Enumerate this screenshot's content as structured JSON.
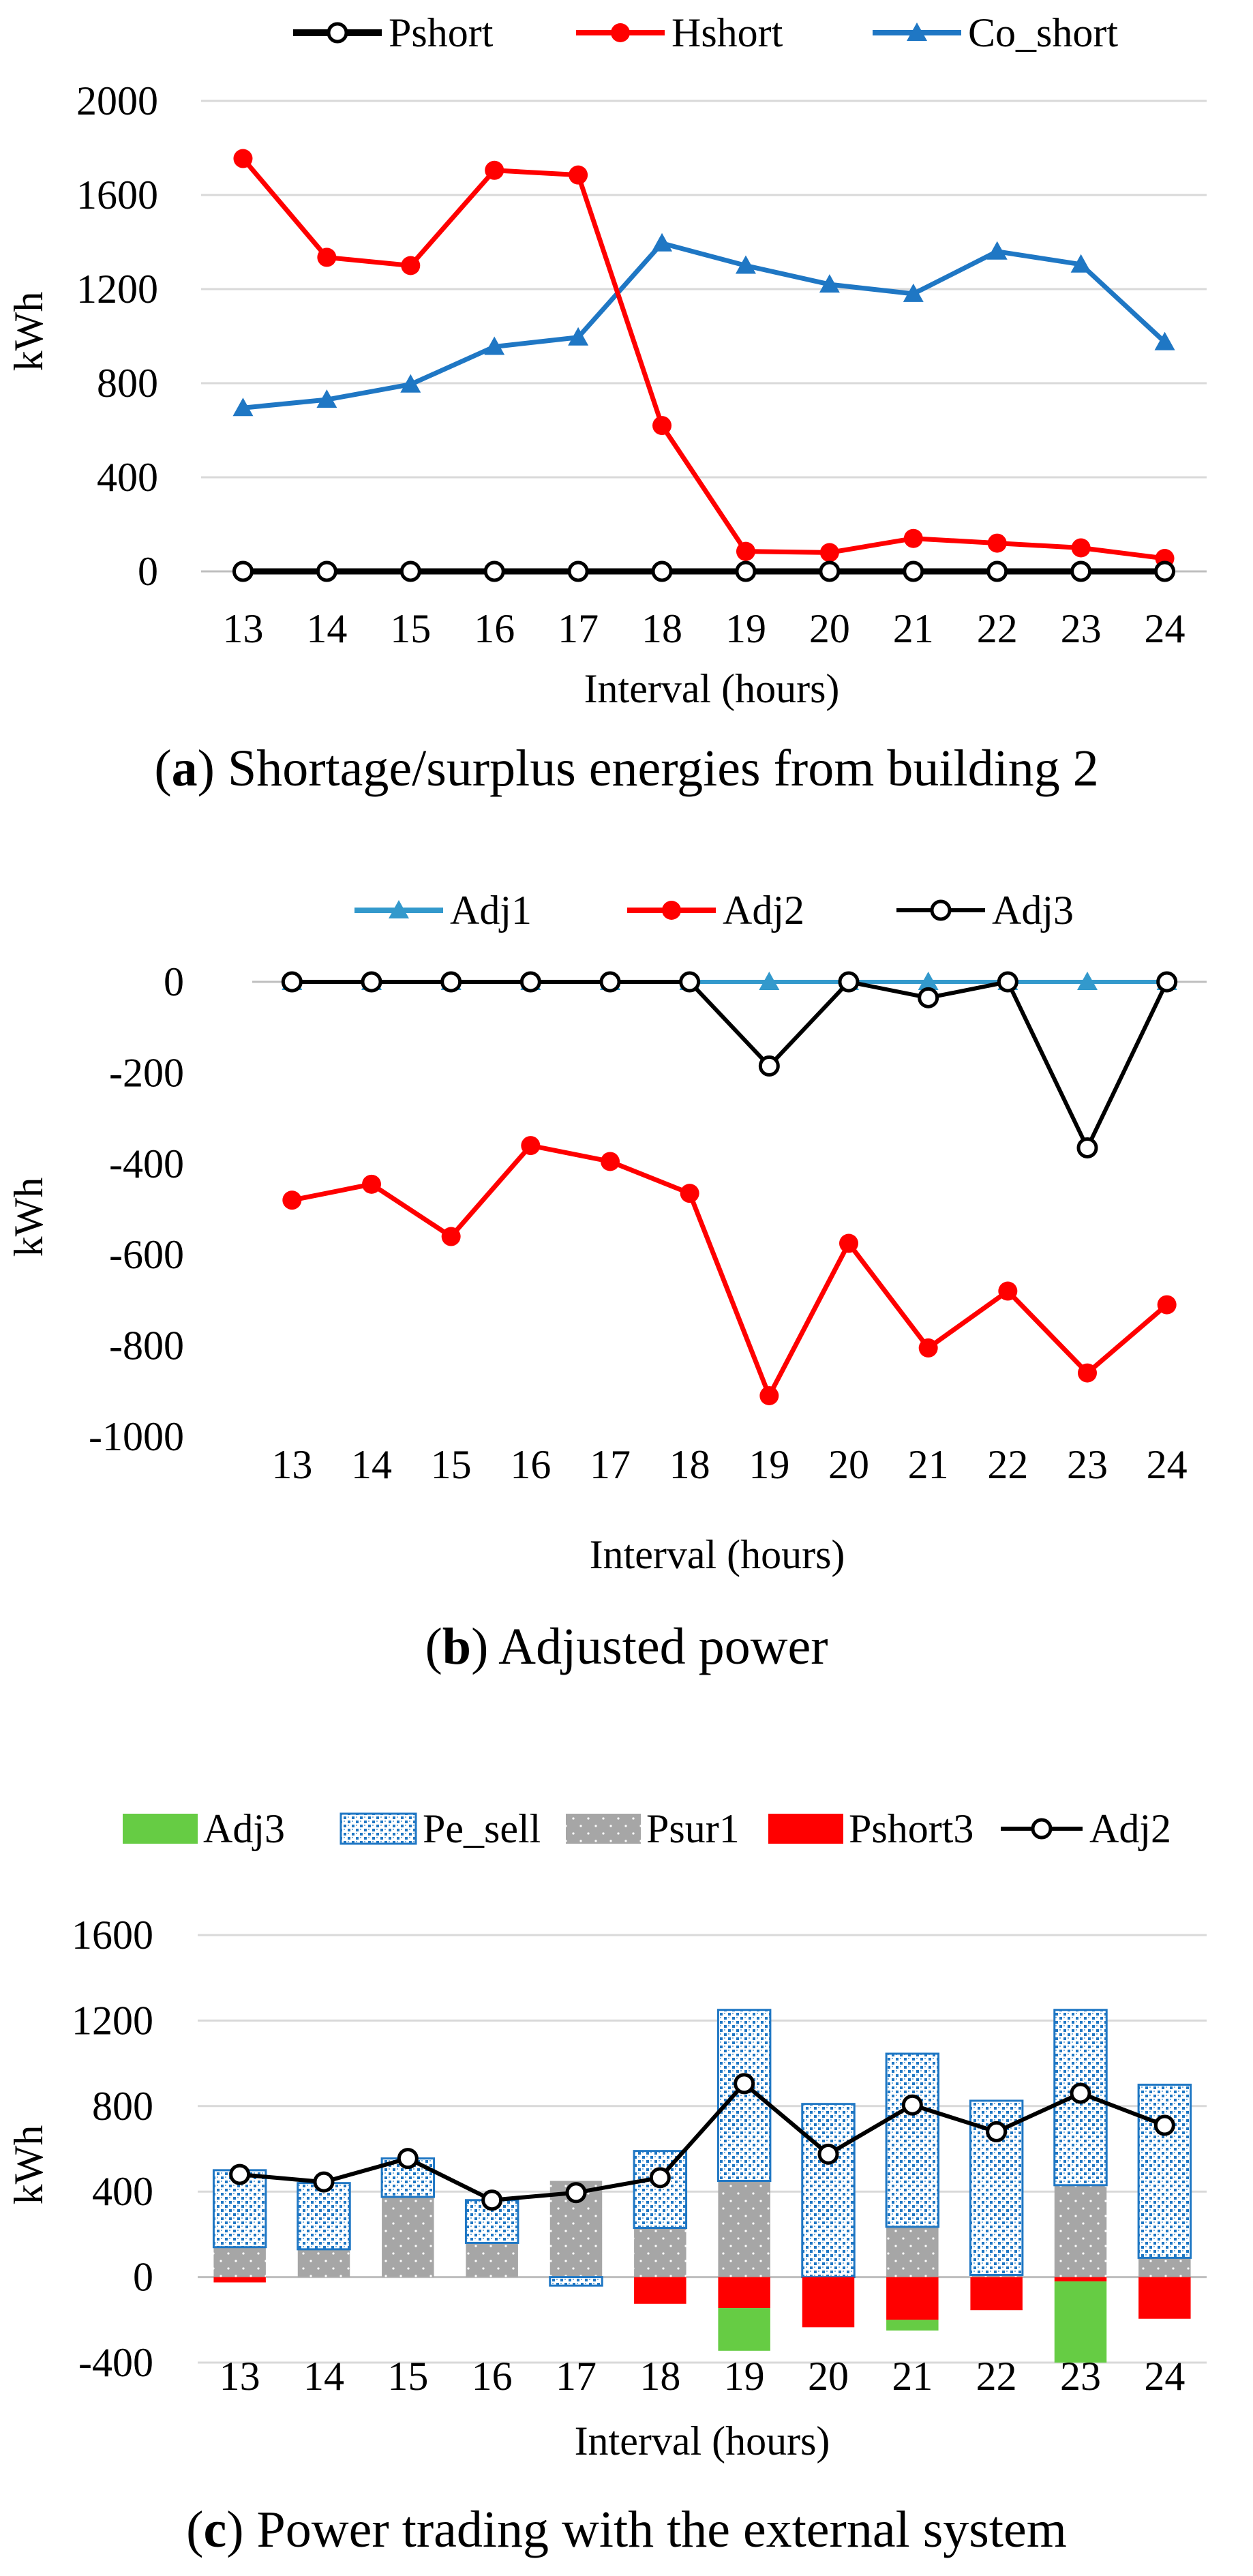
{
  "chart_data": [
    {
      "type": "line",
      "categories": [
        "13",
        "14",
        "15",
        "16",
        "17",
        "18",
        "19",
        "20",
        "21",
        "22",
        "23",
        "24"
      ],
      "series": [
        {
          "name": "Pshort",
          "color": "#000000",
          "marker": "open-circle",
          "values": [
            0,
            0,
            0,
            0,
            0,
            0,
            0,
            0,
            0,
            0,
            0,
            0
          ]
        },
        {
          "name": "Hshort",
          "color": "#ff0000",
          "marker": "filled-circle",
          "values": [
            1755,
            1335,
            1300,
            1705,
            1685,
            620,
            85,
            80,
            140,
            120,
            100,
            55
          ]
        },
        {
          "name": "Co_short",
          "color": "#1f77c4",
          "marker": "triangle",
          "values": [
            695,
            730,
            795,
            955,
            995,
            1395,
            1300,
            1220,
            1180,
            1360,
            1305,
            975
          ]
        }
      ],
      "yticks": [
        "0",
        "400",
        "800",
        "1200",
        "1600",
        "2000"
      ],
      "ylim": [
        0,
        2000
      ],
      "ylabel": "kWh",
      "xlabel": "Interval (hours)",
      "grid": true,
      "legend_position": "top",
      "caption_letter": "a",
      "caption_text": " Shortage/surplus energies from building 2"
    },
    {
      "type": "line",
      "categories": [
        "13",
        "14",
        "15",
        "16",
        "17",
        "18",
        "19",
        "20",
        "21",
        "22",
        "23",
        "24"
      ],
      "series": [
        {
          "name": "Adj1",
          "color": "#3399cc",
          "marker": "triangle",
          "values": [
            0,
            0,
            0,
            0,
            0,
            0,
            0,
            0,
            0,
            0,
            0,
            0
          ]
        },
        {
          "name": "Adj2",
          "color": "#ff0000",
          "marker": "filled-circle",
          "values": [
            -480,
            -445,
            -560,
            -360,
            -395,
            -465,
            -910,
            -575,
            -805,
            -680,
            -860,
            -710
          ]
        },
        {
          "name": "Adj3",
          "color": "#000000",
          "marker": "open-circle",
          "values": [
            0,
            0,
            0,
            0,
            0,
            0,
            -185,
            0,
            -35,
            0,
            -365,
            0
          ]
        }
      ],
      "yticks": [
        "-1000",
        "-800",
        "-600",
        "-400",
        "-200",
        "0"
      ],
      "ylim": [
        -1000,
        0
      ],
      "ylabel": "kWh",
      "xlabel": "Interval (hours)",
      "grid": false,
      "legend_position": "top",
      "caption_letter": "b",
      "caption_text": " Adjusted power"
    },
    {
      "type": "bar",
      "stacked": true,
      "categories": [
        "13",
        "14",
        "15",
        "16",
        "17",
        "18",
        "19",
        "20",
        "21",
        "22",
        "23",
        "24"
      ],
      "series": [
        {
          "name": "Adj3",
          "color": "#66cc44",
          "pattern": "solid",
          "values": [
            0,
            0,
            0,
            0,
            0,
            0,
            -200,
            0,
            -50,
            0,
            -380,
            0
          ]
        },
        {
          "name": "Pe_sell",
          "color": "#1f77c4",
          "pattern": "checker",
          "values": [
            360,
            310,
            180,
            200,
            -40,
            360,
            800,
            810,
            810,
            815,
            820,
            810
          ]
        },
        {
          "name": "Psur1",
          "color": "#a6a6a6",
          "pattern": "dotted",
          "values": [
            140,
            130,
            375,
            160,
            450,
            230,
            450,
            0,
            235,
            10,
            430,
            90
          ]
        },
        {
          "name": "Pshort3",
          "color": "#ff0000",
          "pattern": "solid",
          "values": [
            -25,
            0,
            0,
            0,
            0,
            -125,
            -145,
            -235,
            -200,
            -155,
            -20,
            -195
          ]
        }
      ],
      "line_series": {
        "name": "Adj2",
        "color": "#000000",
        "marker": "open-circle",
        "values": [
          480,
          445,
          555,
          360,
          395,
          465,
          905,
          575,
          805,
          680,
          860,
          710
        ]
      },
      "yticks": [
        "-400",
        "0",
        "400",
        "800",
        "1200",
        "1600"
      ],
      "ylim": [
        -400,
        1600
      ],
      "ylabel": "kWh",
      "xlabel": "Interval (hours)",
      "grid": true,
      "legend_position": "top",
      "caption_letter": "c",
      "caption_text": " Power trading with the external system"
    }
  ]
}
